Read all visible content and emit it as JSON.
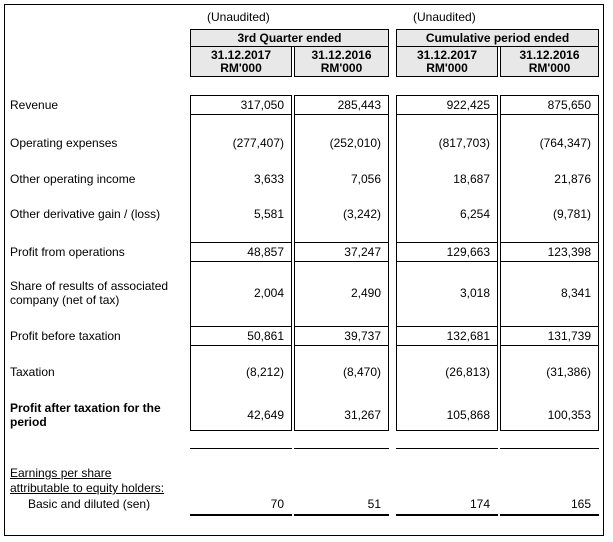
{
  "header": {
    "groups": [
      {
        "unaudited": "(Unaudited)",
        "title": "3rd Quarter ended",
        "columns": [
          {
            "date": "31.12.2017",
            "unit": "RM'000"
          },
          {
            "date": "31.12.2016",
            "unit": "RM'000"
          }
        ]
      },
      {
        "unaudited": "(Unaudited)",
        "title": "Cumulative period ended",
        "columns": [
          {
            "date": "31.12.2017",
            "unit": "RM'000"
          },
          {
            "date": "31.12.2016",
            "unit": "RM'000"
          }
        ]
      }
    ]
  },
  "rows": [
    {
      "label": "Revenue",
      "values": [
        "317,050",
        "285,443",
        "922,425",
        "875,650"
      ]
    },
    {
      "label": "Operating expenses",
      "values": [
        "(277,407)",
        "(252,010)",
        "(817,703)",
        "(764,347)"
      ]
    },
    {
      "label": "Other operating income",
      "values": [
        "3,633",
        "7,056",
        "18,687",
        "21,876"
      ]
    },
    {
      "label": "Other derivative gain / (loss)",
      "values": [
        "5,581",
        "(3,242)",
        "6,254",
        "(9,781)"
      ]
    },
    {
      "label": "Profit from operations",
      "values": [
        "48,857",
        "37,247",
        "129,663",
        "123,398"
      ]
    },
    {
      "label": "Share of results of associated company (net of tax)",
      "values": [
        "2,004",
        "2,490",
        "3,018",
        "8,341"
      ]
    },
    {
      "label": "Profit before taxation",
      "values": [
        "50,861",
        "39,737",
        "132,681",
        "131,739"
      ]
    },
    {
      "label": "Taxation",
      "values": [
        "(8,212)",
        "(8,470)",
        "(26,813)",
        "(31,386)"
      ]
    },
    {
      "label": "Profit after taxation for the period",
      "values": [
        "42,649",
        "31,267",
        "105,868",
        "100,353"
      ]
    }
  ],
  "eps": {
    "heading_line1": "Earnings per share",
    "heading_line2": "attributable to equity holders:",
    "label": "Basic and diluted (sen)",
    "values": [
      "70",
      "51",
      "174",
      "165"
    ]
  }
}
